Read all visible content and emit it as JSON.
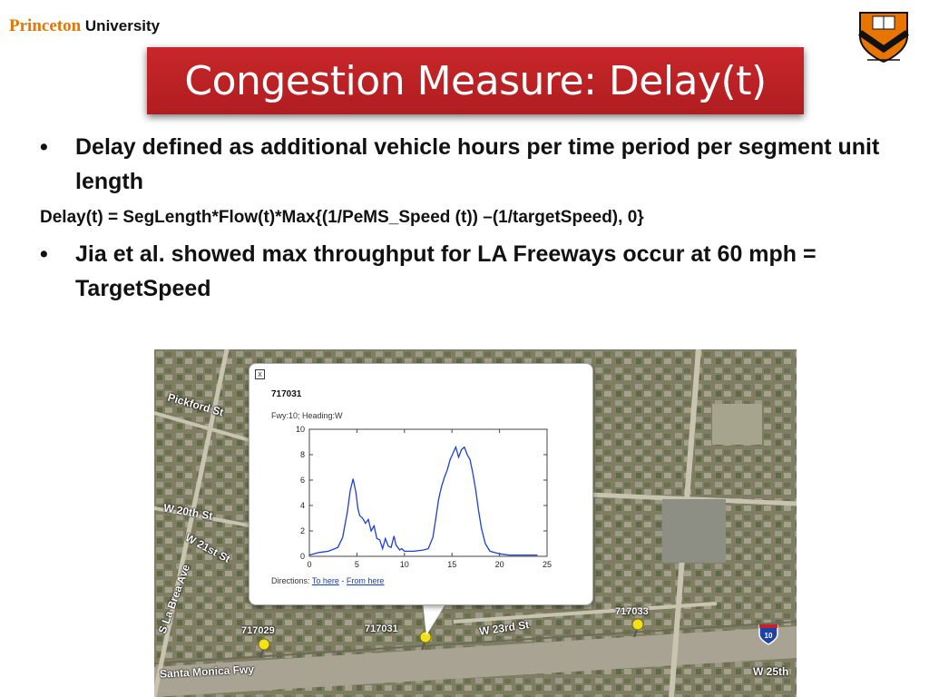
{
  "header": {
    "logo_part1": "Princeton",
    "logo_part2": "University",
    "title": "Congestion Measure: Delay(t)"
  },
  "content": {
    "bullet1": "Delay defined as additional vehicle hours per time period per segment unit length",
    "formula": "Delay(t) = SegLength*Flow(t)*Max{(1/PeMS_Speed (t)) –(1/targetSpeed), 0}",
    "bullet2": "Jia et al. showed max throughput for LA Freeways occur at 60 mph = TargetSpeed",
    "bullet_symbol": "•"
  },
  "map": {
    "streets": {
      "pickford": "Pickford St",
      "w20th": "W 20th St",
      "w21st": "W 21st St",
      "w23rd": "W 23rd St",
      "w25th": "W 25th",
      "labrea": "S La Brea Ave",
      "santamonica": "Santa Monica Fwy"
    },
    "pins": [
      "717029",
      "717031",
      "717033"
    ],
    "freeway_shield": "10",
    "popup": {
      "close_icon": "close-icon",
      "close_glyph": "x",
      "station_id": "717031",
      "subtitle": "Fwy:10; Heading:W",
      "directions_label": "Directions:",
      "to_here": "To here",
      "separator": "-",
      "from_here": "From here"
    }
  },
  "chart_data": {
    "type": "line",
    "title": "",
    "xlabel": "",
    "ylabel": "",
    "xlim": [
      0,
      25
    ],
    "ylim": [
      0,
      10
    ],
    "xticks": [
      0,
      5,
      10,
      15,
      20,
      25
    ],
    "yticks": [
      0,
      2,
      4,
      6,
      8,
      10
    ],
    "series_color": "#1f3fd6",
    "series": [
      {
        "x": [
          0,
          1,
          2,
          3,
          3.5,
          4,
          4.3,
          4.6,
          4.9,
          5.1,
          5.3,
          5.6,
          5.9,
          6.2,
          6.5,
          6.8,
          7.1,
          7.4,
          7.7,
          8,
          8.3,
          8.6,
          8.9,
          9.1,
          9.3,
          9.5,
          9.7,
          10,
          11,
          12,
          12.5,
          13,
          13.3,
          13.6,
          13.9,
          14.2,
          14.5,
          14.8,
          15.1,
          15.4,
          15.7,
          16,
          16.3,
          16.6,
          16.9,
          17.2,
          17.5,
          17.8,
          18.1,
          18.5,
          19,
          20,
          21,
          22,
          23,
          24
        ],
        "y": [
          0.1,
          0.3,
          0.4,
          0.7,
          1.5,
          3.5,
          5.2,
          6.1,
          5.0,
          3.8,
          3.2,
          3.0,
          2.6,
          2.9,
          2.0,
          2.4,
          1.4,
          1.3,
          0.6,
          1.4,
          0.8,
          0.7,
          1.6,
          0.9,
          0.7,
          0.5,
          0.6,
          0.4,
          0.4,
          0.5,
          0.6,
          1.5,
          3.0,
          4.5,
          5.5,
          6.2,
          6.8,
          7.6,
          8.1,
          8.6,
          7.8,
          8.4,
          8.6,
          8.0,
          7.6,
          6.5,
          5.2,
          3.6,
          2.2,
          1.0,
          0.4,
          0.2,
          0.1,
          0.1,
          0.1,
          0.1
        ]
      }
    ]
  }
}
